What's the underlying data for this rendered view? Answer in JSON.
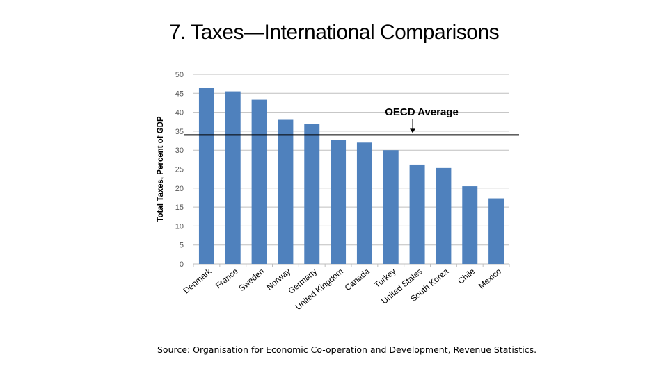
{
  "slide": {
    "title": "7. Taxes—International Comparisons",
    "source": "Source: Organisation for Economic Co-operation and Development, Revenue Statistics."
  },
  "colors": {
    "bar": "#4f81bd",
    "grid": "#bfbfbf",
    "reference_line": "#000000"
  },
  "chart_data": {
    "type": "bar",
    "title": "",
    "xlabel": "",
    "ylabel": "Total Taxes, Percent of GDP",
    "ylim": [
      0,
      50
    ],
    "yticks": [
      0,
      5,
      10,
      15,
      20,
      25,
      30,
      35,
      40,
      45,
      50
    ],
    "grid": true,
    "categories": [
      "Denmark",
      "France",
      "Sweden",
      "Norway",
      "Germany",
      "United Kingdom",
      "Canada",
      "Turkey",
      "United States",
      "South Korea",
      "Chile",
      "Mexico"
    ],
    "values": [
      46.5,
      45.5,
      43.3,
      38.0,
      36.9,
      32.6,
      32.0,
      30.0,
      26.2,
      25.3,
      20.5,
      17.3
    ],
    "reference_line": {
      "label": "OECD Average",
      "value": 34
    }
  }
}
